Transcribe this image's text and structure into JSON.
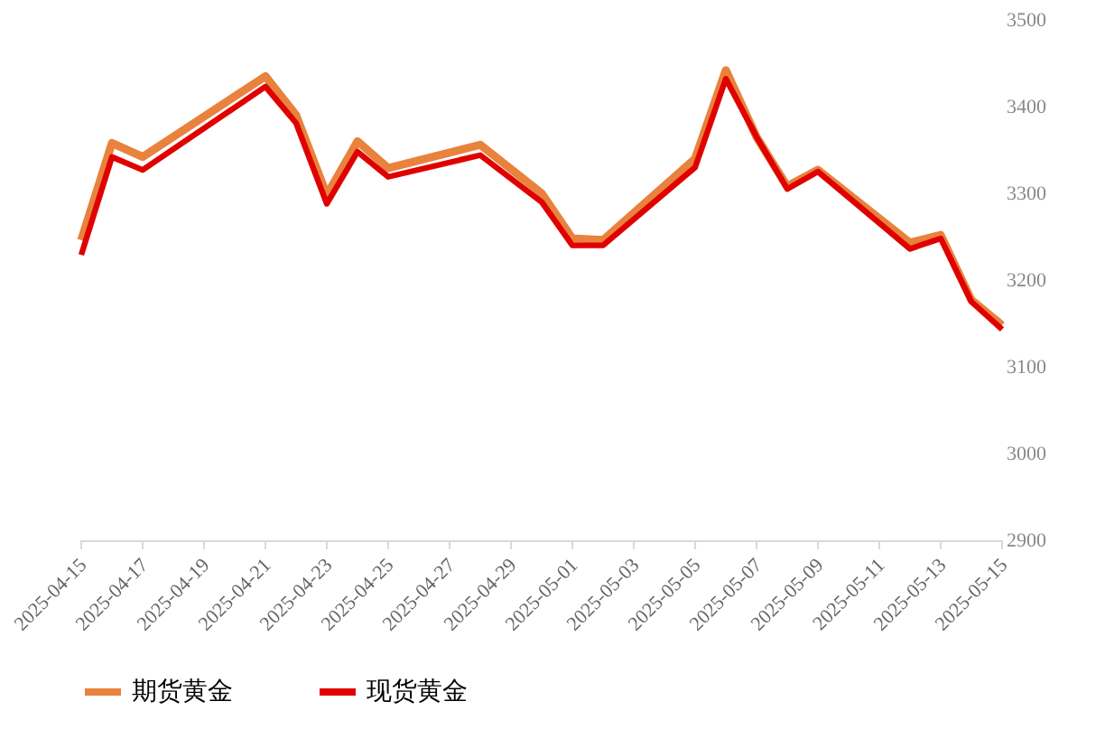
{
  "chart_data": {
    "type": "line",
    "x": [
      "2025-04-15",
      "2025-04-16",
      "2025-04-17",
      "2025-04-21",
      "2025-04-22",
      "2025-04-23",
      "2025-04-24",
      "2025-04-25",
      "2025-04-28",
      "2025-04-30",
      "2025-05-01",
      "2025-05-02",
      "2025-05-05",
      "2025-05-06",
      "2025-05-07",
      "2025-05-08",
      "2025-05-09",
      "2025-05-12",
      "2025-05-13",
      "2025-05-14",
      "2025-05-15"
    ],
    "series": [
      {
        "name": "期货黄金",
        "color": "#e8823c",
        "values": [
          3246,
          3358,
          3342,
          3435,
          3390,
          3298,
          3360,
          3329,
          3356,
          3300,
          3248,
          3246,
          3340,
          3442,
          3365,
          3308,
          3327,
          3243,
          3252,
          3177,
          3148
        ]
      },
      {
        "name": "现货黄金",
        "color": "#e00000",
        "values": [
          3229,
          3342,
          3327,
          3423,
          3381,
          3288,
          3348,
          3319,
          3344,
          3290,
          3240,
          3240,
          3330,
          3432,
          3365,
          3305,
          3325,
          3236,
          3248,
          3175,
          3143
        ]
      }
    ],
    "ylim": [
      2900,
      3500
    ],
    "yticks": [
      2900,
      3000,
      3100,
      3200,
      3300,
      3400,
      3500
    ],
    "xlim": [
      "2025-04-15",
      "2025-05-15"
    ],
    "xticks": [
      "2025-04-15",
      "2025-04-17",
      "2025-04-19",
      "2025-04-21",
      "2025-04-23",
      "2025-04-25",
      "2025-04-27",
      "2025-04-29",
      "2025-05-01",
      "2025-05-03",
      "2025-05-05",
      "2025-05-07",
      "2025-05-09",
      "2025-05-11",
      "2025-05-13",
      "2025-05-15"
    ],
    "grid": false,
    "legend": "bottom",
    "marker": "none",
    "line_style": "solid"
  }
}
